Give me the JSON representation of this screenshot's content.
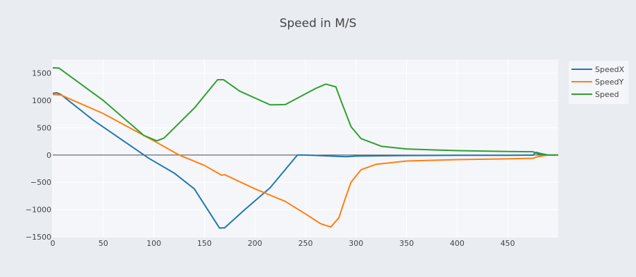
{
  "chart_data": {
    "type": "line",
    "title": "Speed in M/S",
    "xlabel": "",
    "ylabel": "",
    "xlim": [
      0,
      500
    ],
    "ylim": [
      -1500,
      1750
    ],
    "x_ticks": [
      0,
      50,
      100,
      150,
      200,
      250,
      300,
      350,
      400,
      450
    ],
    "y_ticks": [
      -1500,
      -1000,
      -500,
      0,
      500,
      1000,
      1500
    ],
    "grid": true,
    "zero_line": true,
    "legend_position": "top-right",
    "series": [
      {
        "name": "SpeedX",
        "color": "#1f77b4",
        "x": [
          0,
          4,
          8,
          40,
          80,
          95,
          120,
          140,
          165,
          170,
          190,
          215,
          242,
          250,
          290,
          300,
          350,
          400,
          450,
          475,
          478,
          482,
          490,
          500
        ],
        "y": [
          1130,
          1140,
          1110,
          640,
          130,
          -60,
          -330,
          -620,
          -1340,
          -1335,
          -1000,
          -600,
          0,
          0,
          -30,
          -20,
          -10,
          -5,
          -5,
          -2,
          50,
          30,
          0,
          0
        ]
      },
      {
        "name": "SpeedY",
        "color": "#ff7f0e",
        "x": [
          0,
          8,
          50,
          100,
          125,
          150,
          167,
          170,
          200,
          230,
          250,
          265,
          275,
          283,
          290,
          295,
          305,
          320,
          350,
          400,
          450,
          475,
          480,
          490,
          500
        ],
        "y": [
          1110,
          1100,
          760,
          260,
          0,
          -190,
          -370,
          -360,
          -620,
          -850,
          -1080,
          -1260,
          -1320,
          -1150,
          -760,
          -500,
          -270,
          -170,
          -110,
          -85,
          -70,
          -60,
          -30,
          0,
          0
        ]
      },
      {
        "name": "Speed",
        "color": "#2ca02c",
        "x": [
          0,
          6,
          50,
          90,
          103,
          110,
          140,
          163,
          169,
          185,
          215,
          230,
          260,
          270,
          280,
          285,
          295,
          305,
          325,
          350,
          400,
          450,
          475,
          480,
          490,
          500
        ],
        "y": [
          1600,
          1595,
          1000,
          360,
          260,
          310,
          860,
          1380,
          1380,
          1170,
          920,
          925,
          1220,
          1300,
          1250,
          1000,
          520,
          300,
          160,
          110,
          80,
          65,
          60,
          20,
          0,
          0
        ]
      }
    ]
  }
}
